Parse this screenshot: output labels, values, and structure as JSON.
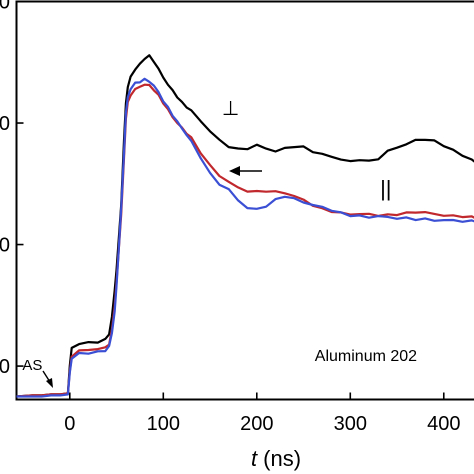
{
  "chart_data": {
    "type": "line",
    "title": "",
    "xlabel": "t (ns)",
    "xlabel_italic": "t",
    "xlabel_unit": " (ns)",
    "ylabel": "",
    "xlim": [
      -57,
      435
    ],
    "ylim": [
      7,
      400
    ],
    "xticks": [
      0,
      100,
      200,
      300,
      400
    ],
    "xtick_labels": [
      "0",
      "100",
      "200",
      "300",
      "400"
    ],
    "yticks": [
      40,
      160,
      280,
      400
    ],
    "ytick_labels": [
      "0",
      "0",
      "0",
      "0"
    ],
    "grid": false,
    "legend": "none",
    "series": [
      {
        "name": "⊥",
        "color": "#000000",
        "x": [
          -57,
          -40,
          -30,
          -20,
          -10,
          -2,
          0,
          2,
          10,
          20,
          30,
          38,
          42,
          45,
          48,
          50,
          52,
          55,
          58,
          60,
          62,
          65,
          70,
          75,
          80,
          85,
          90,
          95,
          100,
          105,
          110,
          115,
          120,
          125,
          130,
          140,
          150,
          160,
          170,
          180,
          190,
          200,
          210,
          220,
          230,
          240,
          250,
          260,
          270,
          280,
          290,
          300,
          310,
          320,
          330,
          340,
          350,
          360,
          370,
          380,
          390,
          400,
          410,
          420,
          430,
          435
        ],
        "y": [
          10,
          11,
          11,
          12,
          12,
          13,
          40,
          58,
          62,
          63,
          64,
          66,
          72,
          88,
          115,
          135,
          160,
          200,
          262,
          300,
          315,
          326,
          333,
          338,
          344,
          346,
          341,
          333,
          325,
          318,
          312,
          306,
          300,
          296,
          292,
          282,
          272,
          263,
          257,
          254,
          255,
          258,
          255,
          252,
          255,
          257,
          256,
          252,
          249,
          247,
          244,
          242,
          244,
          242,
          245,
          252,
          256,
          259,
          263,
          264,
          262,
          258,
          253,
          248,
          244,
          240
        ]
      },
      {
        "name": "||",
        "color": "#c0282d",
        "x": [
          -57,
          -40,
          -30,
          -20,
          -10,
          -2,
          0,
          2,
          10,
          20,
          30,
          38,
          42,
          45,
          48,
          50,
          52,
          55,
          58,
          60,
          62,
          65,
          70,
          75,
          80,
          85,
          90,
          95,
          100,
          105,
          110,
          115,
          120,
          125,
          130,
          140,
          150,
          160,
          170,
          180,
          190,
          200,
          210,
          220,
          230,
          240,
          250,
          260,
          270,
          280,
          290,
          300,
          310,
          320,
          330,
          340,
          350,
          360,
          370,
          380,
          390,
          400,
          410,
          420,
          430,
          435
        ],
        "y": [
          10,
          11,
          11,
          12,
          12,
          13,
          34,
          50,
          55,
          56,
          57,
          58,
          62,
          75,
          100,
          122,
          150,
          190,
          245,
          285,
          300,
          308,
          313,
          316,
          318,
          317,
          313,
          307,
          300,
          293,
          286,
          280,
          275,
          270,
          265,
          251,
          238,
          228,
          222,
          216,
          213,
          212,
          213,
          212,
          211,
          208,
          204,
          199,
          195,
          193,
          191,
          190,
          190,
          190,
          189,
          189,
          190,
          191,
          192,
          192,
          190,
          189,
          188,
          188,
          187,
          186
        ]
      },
      {
        "name": "",
        "color": "#3a4fd4",
        "x": [
          -57,
          -40,
          -30,
          -20,
          -10,
          -2,
          0,
          2,
          10,
          20,
          30,
          38,
          42,
          45,
          48,
          50,
          52,
          55,
          58,
          60,
          62,
          65,
          70,
          75,
          80,
          85,
          90,
          95,
          100,
          105,
          110,
          115,
          120,
          125,
          130,
          140,
          150,
          160,
          170,
          180,
          190,
          200,
          210,
          220,
          230,
          240,
          250,
          260,
          270,
          280,
          290,
          300,
          310,
          320,
          330,
          340,
          350,
          360,
          370,
          380,
          390,
          400,
          410,
          420,
          430,
          435
        ],
        "y": [
          10,
          10,
          10,
          11,
          11,
          12,
          33,
          48,
          52,
          53,
          54,
          55,
          60,
          72,
          95,
          118,
          150,
          195,
          250,
          290,
          305,
          314,
          319,
          321,
          323,
          321,
          317,
          310,
          302,
          295,
          288,
          281,
          275,
          268,
          262,
          246,
          230,
          220,
          214,
          204,
          196,
          195,
          198,
          204,
          208,
          205,
          202,
          199,
          197,
          194,
          191,
          189,
          188,
          187,
          188,
          187,
          186,
          186,
          185,
          185,
          184,
          184,
          184,
          183,
          183,
          183
        ]
      }
    ],
    "annotations": [
      {
        "text": "⊥",
        "x": 172,
        "y": 288
      },
      {
        "text": "||",
        "x": 338,
        "y": 208
      },
      {
        "text": "AS",
        "x": -40,
        "y": 36
      },
      {
        "text": "Aluminum 202",
        "x": 262,
        "y": 45
      }
    ]
  }
}
